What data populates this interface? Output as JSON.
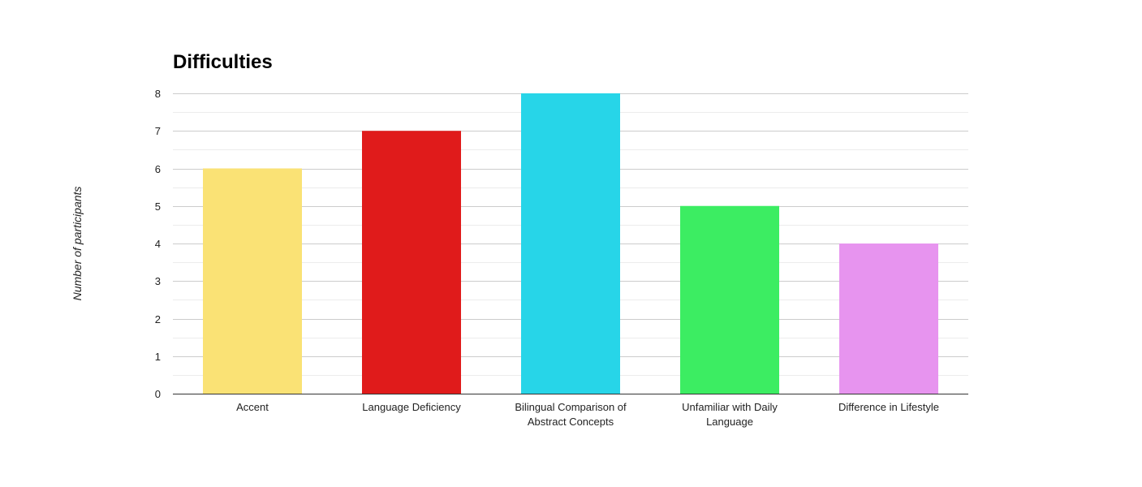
{
  "chart_data": {
    "type": "bar",
    "title": "Difficulties",
    "xlabel": "",
    "ylabel": "Number of participants",
    "ylim": [
      0,
      8
    ],
    "yticks": [
      0,
      1,
      2,
      3,
      4,
      5,
      6,
      7,
      8
    ],
    "grid": true,
    "legend": "none",
    "categories": [
      "Accent",
      "Language Deficiency",
      "Bilingual Comparison of Abstract Concepts",
      "Unfamiliar with Daily Language",
      "Difference in Lifestyle"
    ],
    "category_label_lines": [
      [
        "Accent"
      ],
      [
        "Language Deficiency"
      ],
      [
        "Bilingual Comparison of",
        "Abstract Concepts"
      ],
      [
        "Unfamiliar with Daily",
        "Language"
      ],
      [
        "Difference in Lifestyle"
      ]
    ],
    "values": [
      6,
      7,
      8,
      5,
      4
    ],
    "colors": [
      "#fae275",
      "#e01b1b",
      "#27d5e8",
      "#3ced62",
      "#e794ef"
    ]
  }
}
